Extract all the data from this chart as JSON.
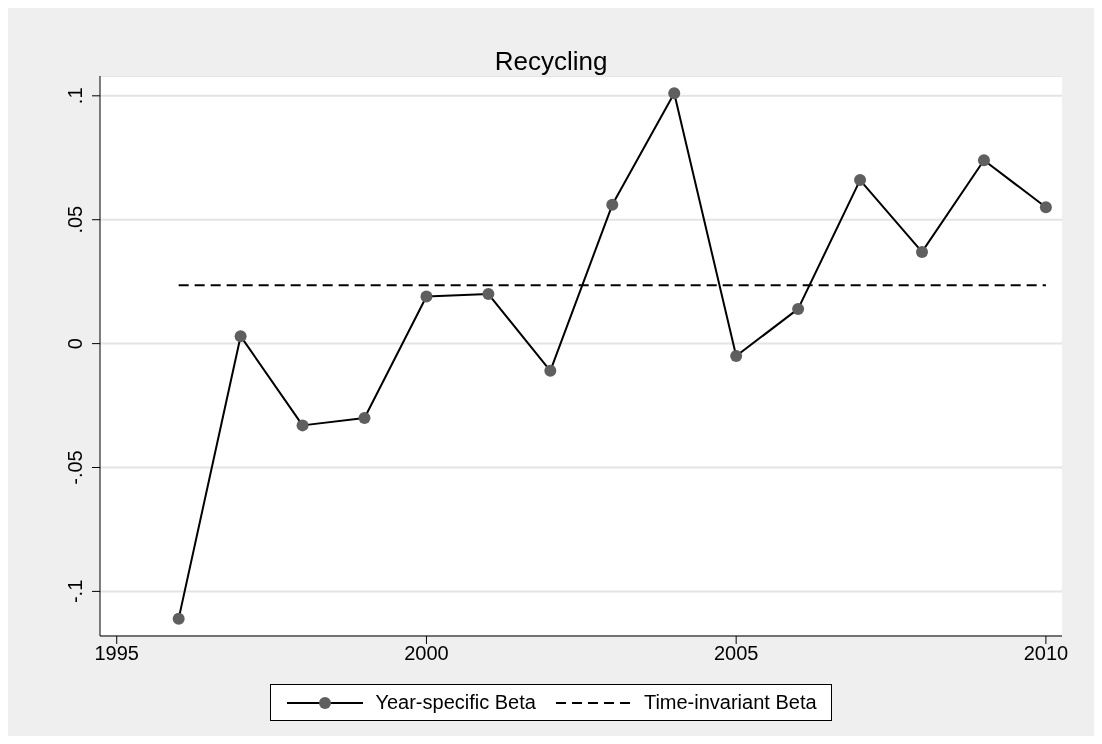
{
  "chart_data": {
    "type": "line",
    "title": "Recycling",
    "xlim": [
      1994.73,
      2010.26
    ],
    "xticks": [
      1995,
      2000,
      2005,
      2010
    ],
    "ylim": [
      -0.118,
      0.108
    ],
    "yticks": [
      {
        "value": -0.1,
        "label": "-.1"
      },
      {
        "value": -0.05,
        "label": "-.05"
      },
      {
        "value": 0,
        "label": "0"
      },
      {
        "value": 0.05,
        "label": ".05"
      },
      {
        "value": 0.1,
        "label": ".1"
      }
    ],
    "grid": "y",
    "legend": "bottom",
    "series": [
      {
        "name": "Year-specific Beta",
        "color": "#000000",
        "marker": "circle",
        "line_style": "solid",
        "x": [
          1996,
          1997,
          1998,
          1999,
          2000,
          2001,
          2002,
          2003,
          2004,
          2005,
          2006,
          2007,
          2008,
          2009,
          2010
        ],
        "values": [
          -0.111,
          0.003,
          -0.033,
          -0.03,
          0.019,
          0.02,
          -0.011,
          0.056,
          0.101,
          -0.005,
          0.014,
          0.066,
          0.037,
          0.074,
          0.055
        ]
      },
      {
        "name": "Time-invariant Beta",
        "color": "#000000",
        "marker": "none",
        "line_style": "dashed",
        "x": [
          1996,
          2010
        ],
        "values": [
          0.0236,
          0.0236
        ]
      }
    ]
  }
}
